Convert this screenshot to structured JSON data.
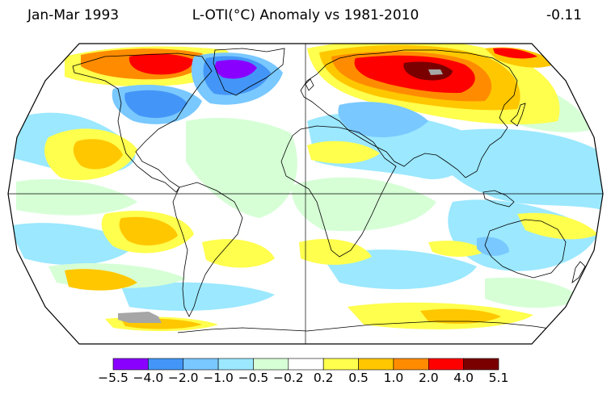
{
  "header": {
    "period": "Jan-Mar 1993",
    "title": "L-OTI(°C) Anomaly vs 1981-2010",
    "global_mean": "-0.11"
  },
  "legend": {
    "labels": [
      "−5.5",
      "−4.0",
      "−2.0",
      "−1.0",
      "−0.5",
      "−0.2",
      "0.2",
      "0.5",
      "1.0",
      "2.0",
      "4.0",
      "5.1"
    ],
    "colors": [
      "#8a00ff",
      "#4396f7",
      "#79c8ff",
      "#9be8ff",
      "#d6ffd6",
      "#ffffff",
      "#ffff4d",
      "#ffc700",
      "#ff8c00",
      "#ff0000",
      "#7a0000"
    ]
  },
  "map": {
    "projection": "Robinson",
    "background_color": "#ffffff",
    "missing_data_color": "#a6a6a6"
  }
}
